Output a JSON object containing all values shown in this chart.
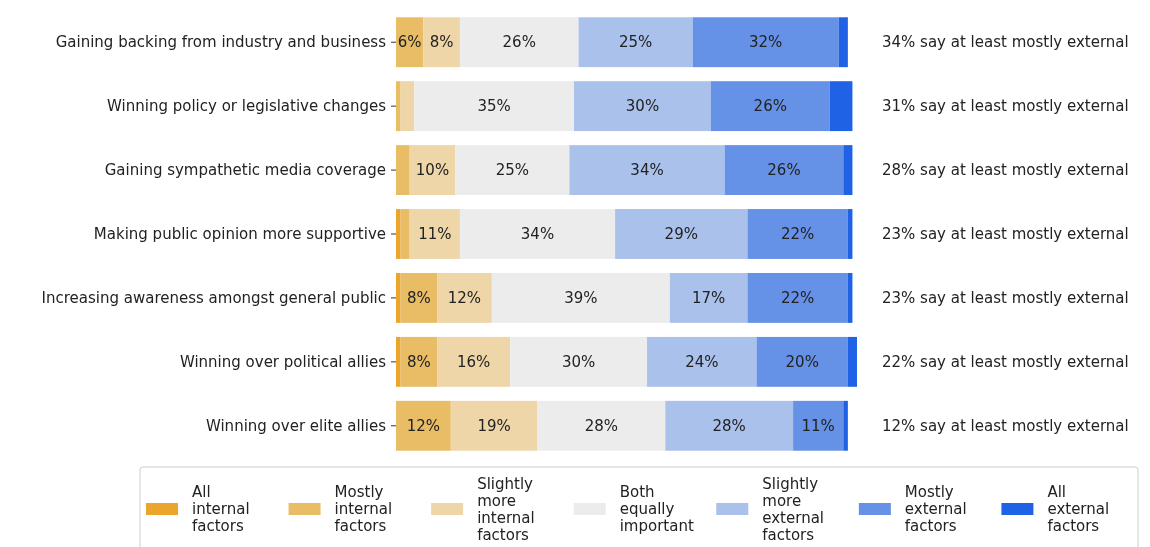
{
  "chart_data": {
    "type": "bar",
    "orientation": "horizontal",
    "stacked": true,
    "legend": "bottom",
    "tick_labels": "y",
    "categories": [
      "Gaining backing from industry and business",
      "Winning policy or legislative changes",
      "Gaining sympathetic media coverage",
      "Making public opinion more supportive",
      "Increasing awareness amongst general public",
      "Winning over political allies",
      "Winning over elite allies"
    ],
    "series": [
      {
        "name": "All internal factors",
        "color": "#eba52a",
        "values": [
          0,
          0,
          0,
          1,
          1,
          1,
          0
        ],
        "value_labels": [
          null,
          null,
          null,
          null,
          null,
          null,
          null
        ]
      },
      {
        "name": "Mostly internal factors",
        "color": "#e9bd66",
        "values": [
          6,
          1,
          3,
          2,
          8,
          8,
          12
        ],
        "value_labels": [
          "6%",
          null,
          null,
          null,
          "8%",
          "8%",
          "12%"
        ]
      },
      {
        "name": "Slightly more internal factors",
        "color": "#eed6a8",
        "values": [
          8,
          3,
          10,
          11,
          12,
          16,
          19
        ],
        "value_labels": [
          "8%",
          null,
          "10%",
          "11%",
          "12%",
          "16%",
          "19%"
        ]
      },
      {
        "name": "Both equally important",
        "color": "#ececec",
        "values": [
          26,
          35,
          25,
          34,
          39,
          30,
          28
        ],
        "value_labels": [
          "26%",
          "35%",
          "25%",
          "34%",
          "39%",
          "30%",
          "28%"
        ]
      },
      {
        "name": "Slightly more external factors",
        "color": "#a9c1eb",
        "values": [
          25,
          30,
          34,
          29,
          17,
          24,
          28
        ],
        "value_labels": [
          "25%",
          "30%",
          "34%",
          "29%",
          "17%",
          "24%",
          "28%"
        ]
      },
      {
        "name": "Mostly external factors",
        "color": "#6591e7",
        "values": [
          32,
          26,
          26,
          22,
          22,
          20,
          11
        ],
        "value_labels": [
          "32%",
          "26%",
          "26%",
          "22%",
          "22%",
          "20%",
          "11%"
        ]
      },
      {
        "name": "All external factors",
        "color": "#1f62e6",
        "values": [
          2,
          5,
          2,
          1,
          1,
          2,
          1
        ],
        "value_labels": [
          null,
          null,
          null,
          null,
          null,
          null,
          null
        ]
      }
    ],
    "annotations": [
      "34% say at least mostly external",
      "31% say at least mostly external",
      "28% say at least mostly external",
      "23% say at least mostly external",
      "23% say at least mostly external",
      "22% say at least mostly external",
      "12% say at least mostly external"
    ]
  }
}
